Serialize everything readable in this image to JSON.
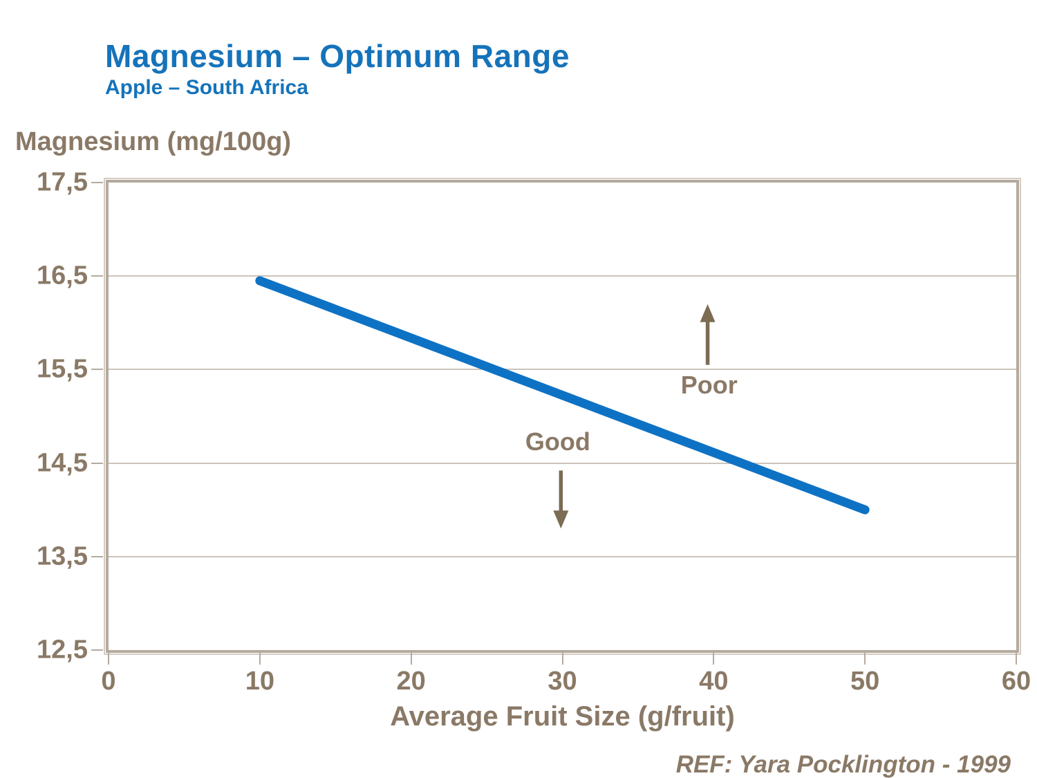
{
  "page": {
    "title": "Magnesium – Optimum Range",
    "subtitle": "Apple – South Africa",
    "ref": "REF: Yara Pocklington - 1999"
  },
  "colors": {
    "title_blue": "#1573ba",
    "line_blue": "#0e72c4",
    "text_brown": "#8a7966",
    "arrow_brown": "#7c6c54",
    "grid": "#ccc4ba",
    "border": "#b4aa9f"
  },
  "chart_data": {
    "type": "line",
    "title": "Magnesium – Optimum Range",
    "subtitle": "Apple – South Africa",
    "xlabel": "Average Fruit Size (g/fruit)",
    "ylabel": "Magnesium (mg/100g)",
    "xlim": [
      0,
      60
    ],
    "ylim": [
      12.5,
      17.5
    ],
    "grid": "horizontal",
    "legend": false,
    "x_ticks": [
      {
        "v": 0,
        "label": "0"
      },
      {
        "v": 10,
        "label": "10"
      },
      {
        "v": 20,
        "label": "20"
      },
      {
        "v": 30,
        "label": "30"
      },
      {
        "v": 40,
        "label": "40"
      },
      {
        "v": 50,
        "label": "50"
      },
      {
        "v": 60,
        "label": "60"
      }
    ],
    "y_ticks": [
      {
        "v": 12.5,
        "label": "12,5"
      },
      {
        "v": 13.5,
        "label": "13,5"
      },
      {
        "v": 14.5,
        "label": "14,5"
      },
      {
        "v": 15.5,
        "label": "15,5"
      },
      {
        "v": 16.5,
        "label": "16,5"
      },
      {
        "v": 17.5,
        "label": "17,5"
      }
    ],
    "series": [
      {
        "points": [
          {
            "x": 10,
            "y": 16.45
          },
          {
            "x": 50,
            "y": 14.0
          }
        ]
      }
    ],
    "annotations": [
      {
        "label": "Poor",
        "label_x": 39.7,
        "label_y": 15.33,
        "arrow": "up",
        "arrow_x": 39.6,
        "arrow_from_y": 15.55,
        "arrow_to_y": 16.2
      },
      {
        "label": "Good",
        "label_x": 29.7,
        "label_y": 14.73,
        "arrow": "down",
        "arrow_x": 29.9,
        "arrow_from_y": 14.42,
        "arrow_to_y": 13.8
      }
    ]
  }
}
